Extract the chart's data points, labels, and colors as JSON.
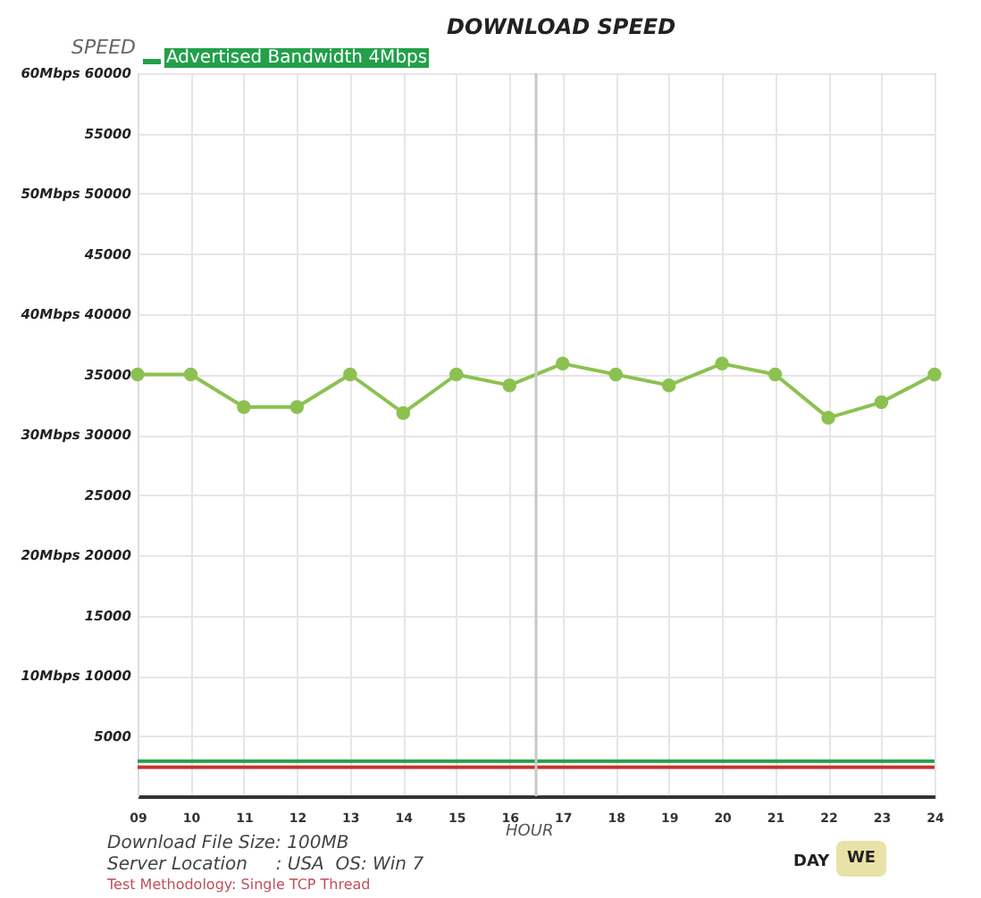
{
  "chart_data": {
    "type": "line",
    "title": "DOWNLOAD SPEED",
    "xlabel": "HOUR",
    "ylabel": "SPEED",
    "x": [
      9,
      10,
      11,
      12,
      13,
      14,
      15,
      16,
      17,
      18,
      19,
      20,
      21,
      22,
      23,
      24
    ],
    "series": [
      {
        "color": "#8cc152",
        "values": [
          35000,
          35000,
          32300,
          32300,
          35000,
          31800,
          35000,
          34100,
          35900,
          35000,
          34100,
          35900,
          35000,
          31400,
          32700,
          35000
        ]
      }
    ],
    "marker": "circle",
    "grid": true,
    "legend": "top left",
    "xlim": [
      9,
      24
    ],
    "xticks": [
      {
        "value": 9,
        "label": "09"
      },
      10,
      11,
      12,
      13,
      14,
      15,
      16,
      17,
      18,
      19,
      20,
      21,
      22,
      23,
      24
    ],
    "ylim": [
      0,
      60000
    ],
    "yticks": [
      {
        "value": 5000,
        "label": "5000"
      },
      {
        "value": 10000,
        "label": "10Mbps 10000"
      },
      {
        "value": 15000,
        "label": "15000"
      },
      {
        "value": 20000,
        "label": "20Mbps 20000"
      },
      {
        "value": 25000,
        "label": "25000"
      },
      {
        "value": 30000,
        "label": "30Mbps 30000"
      },
      {
        "value": 35000,
        "label": "35000"
      },
      {
        "value": 40000,
        "label": "40Mbps 40000"
      },
      {
        "value": 45000,
        "label": "45000"
      },
      {
        "value": 50000,
        "label": "50Mbps 50000"
      },
      {
        "value": 55000,
        "label": "55000"
      },
      {
        "value": 60000,
        "label": "60Mbps 60000"
      }
    ],
    "ref_lines": [
      {
        "axis": "y",
        "value": 2900,
        "label": "Advertised Bandwidth 4Mbps",
        "color": "#22a04a"
      },
      {
        "axis": "y",
        "value": 2400,
        "color": "#c83232"
      },
      {
        "axis": "x",
        "value": 16.5,
        "color": "#c8c8c8"
      }
    ],
    "annotations": [
      "Download File Size: 100MB",
      "Server Location     : USA  OS: Win 7",
      "Test Methodology: Single TCP Thread",
      "DAY",
      "WE"
    ]
  }
}
